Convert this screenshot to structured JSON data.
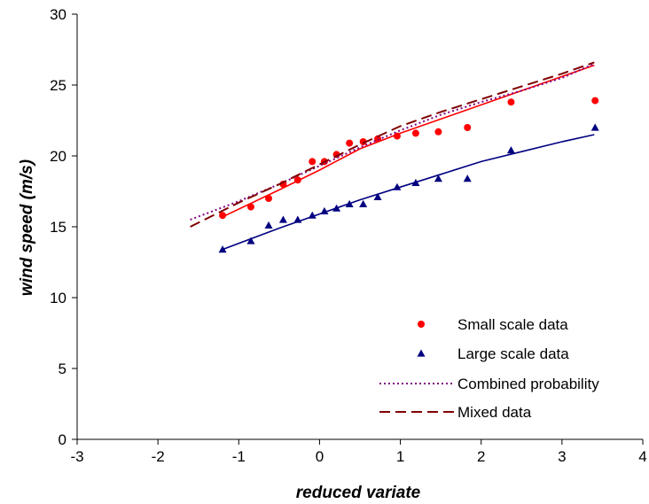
{
  "chart_data": {
    "type": "scatter",
    "xlabel": "reduced variate",
    "ylabel": "wind speed (m/s)",
    "xlim": [
      -3,
      4
    ],
    "ylim": [
      0,
      30
    ],
    "xticks": [
      -3,
      -2,
      -1,
      0,
      1,
      2,
      3,
      4
    ],
    "yticks": [
      0,
      5,
      10,
      15,
      20,
      25,
      30
    ],
    "xtick_labels": [
      "-3",
      "-2",
      "-1",
      "0",
      "1",
      "2",
      "3",
      "4"
    ],
    "ytick_labels": [
      "0",
      "5",
      "10",
      "15",
      "20",
      "25",
      "30"
    ],
    "grid": false,
    "legend_position": "bottom-right",
    "series": [
      {
        "name": "Small scale data",
        "kind": "points",
        "marker": "circle",
        "color": "#ff0000",
        "x": [
          -1.2,
          -0.85,
          -0.63,
          -0.45,
          -0.27,
          -0.09,
          0.06,
          0.21,
          0.37,
          0.54,
          0.72,
          0.96,
          1.19,
          1.47,
          1.83,
          2.37,
          3.41
        ],
        "y": [
          15.8,
          16.4,
          17.0,
          18.0,
          18.3,
          19.6,
          19.6,
          20.1,
          20.9,
          21.0,
          21.2,
          21.4,
          21.6,
          21.7,
          22.0,
          23.8,
          23.9
        ]
      },
      {
        "name": "Large scale data",
        "kind": "points",
        "marker": "triangle",
        "color": "#000080",
        "x": [
          -1.2,
          -0.85,
          -0.63,
          -0.45,
          -0.27,
          -0.09,
          0.06,
          0.21,
          0.37,
          0.54,
          0.72,
          0.96,
          1.19,
          1.47,
          1.83,
          2.37,
          3.41
        ],
        "y": [
          13.4,
          14.0,
          15.1,
          15.5,
          15.5,
          15.8,
          16.1,
          16.3,
          16.6,
          16.6,
          17.1,
          17.8,
          18.1,
          18.4,
          18.4,
          20.4,
          22.0
        ]
      },
      {
        "name": "",
        "kind": "line",
        "style": "solid",
        "color": "#ff0000",
        "x": [
          -1.2,
          -0.5,
          0.0,
          0.5,
          1.0,
          1.5,
          2.0,
          2.5,
          3.0,
          3.4
        ],
        "y": [
          15.7,
          17.6,
          19.0,
          20.5,
          21.6,
          22.6,
          23.6,
          24.6,
          25.6,
          26.4
        ]
      },
      {
        "name": "",
        "kind": "line",
        "style": "solid",
        "color": "#000080",
        "x": [
          -1.2,
          -0.5,
          0.0,
          0.5,
          1.0,
          1.5,
          2.0,
          2.5,
          3.0,
          3.4
        ],
        "y": [
          13.4,
          14.9,
          15.9,
          16.9,
          17.8,
          18.7,
          19.6,
          20.3,
          21.0,
          21.5
        ]
      },
      {
        "name": "Combined probability",
        "kind": "line",
        "style": "dotted",
        "color": "#800080",
        "x": [
          -1.6,
          -1.0,
          -0.5,
          0.0,
          0.5,
          1.0,
          1.5,
          2.0,
          2.5,
          3.0,
          3.4
        ],
        "y": [
          15.5,
          16.8,
          18.0,
          19.3,
          20.6,
          21.8,
          22.9,
          23.8,
          24.6,
          25.5,
          26.5
        ]
      },
      {
        "name": "Mixed data",
        "kind": "line",
        "style": "dashed",
        "color": "#800000",
        "x": [
          -1.6,
          -1.0,
          -0.5,
          0.0,
          0.5,
          1.0,
          1.5,
          2.0,
          2.5,
          3.0,
          3.4
        ],
        "y": [
          15.0,
          16.7,
          18.0,
          19.4,
          20.8,
          22.1,
          23.1,
          24.0,
          24.9,
          25.8,
          26.6
        ]
      }
    ],
    "legend": [
      {
        "label": "Small scale data",
        "symbol": "circle",
        "color": "#ff0000"
      },
      {
        "label": "Large scale data",
        "symbol": "triangle",
        "color": "#000080"
      },
      {
        "label": "Combined probability",
        "symbol": "dotted",
        "color": "#800080"
      },
      {
        "label": "Mixed data",
        "symbol": "dashed",
        "color": "#800000"
      }
    ]
  }
}
